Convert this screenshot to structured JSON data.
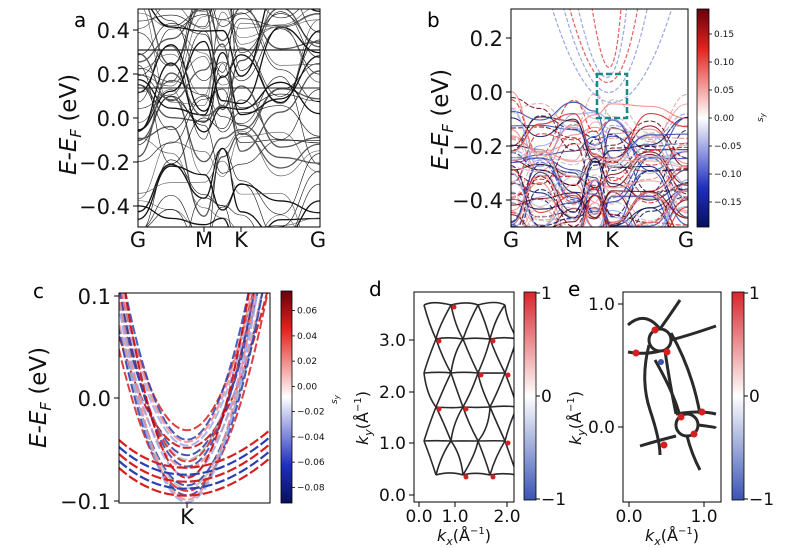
{
  "colors": {
    "red": "#d62020",
    "blue": "#2a3fb0",
    "darkred": "#67000d",
    "darkblue": "#08105a",
    "box": "#1a8a86",
    "lines": "#222222"
  },
  "panels": {
    "a": {
      "label": "a",
      "ylabel": "E-E",
      "ylabel_sub": "F",
      "ylabel_unit": " (eV)",
      "yticks": [
        "0.4",
        "0.2",
        "0.0",
        "−0.2",
        "−0.4"
      ],
      "xticks": [
        "G",
        "M",
        "K",
        "G"
      ]
    },
    "b": {
      "label": "b",
      "ylabel": "E-E",
      "ylabel_sub": "F",
      "ylabel_unit": " (eV)",
      "yticks": [
        "0.2",
        "0.0",
        "−0.2",
        "−0.4"
      ],
      "xticks": [
        "G",
        "M",
        "K",
        "G"
      ],
      "colorbar": {
        "label": "s",
        "label_sub": "y",
        "ticks": [
          "0.15",
          "0.10",
          "0.05",
          "0.00",
          "−0.05",
          "−0.10",
          "−0.15"
        ]
      }
    },
    "c": {
      "label": "c",
      "ylabel": "E-E",
      "ylabel_sub": "F",
      "ylabel_unit": " (eV)",
      "yticks": [
        "0.1",
        "0.0",
        "−0.1"
      ],
      "xticks": [
        "K"
      ],
      "colorbar": {
        "label": "s",
        "label_sub": "y",
        "ticks": [
          "0.06",
          "0.04",
          "0.02",
          "0.00",
          "−0.02",
          "−0.04",
          "−0.06",
          "−0.08"
        ]
      }
    },
    "d": {
      "label": "d",
      "ylabel": "k",
      "ylabel_sub": "y",
      "ylabel_unit": "(Å",
      "ylabel_sup": "−1",
      "ylabel_close": ")",
      "xlabel": "k",
      "xlabel_sub": "x",
      "xlabel_unit": "(Å",
      "xlabel_sup": "−1",
      "xlabel_close": ")",
      "yticks": [
        "3.0",
        "2.0",
        "1.0",
        "0.0"
      ],
      "xticks": [
        "0.0",
        "1.0",
        "2.0"
      ],
      "colorbar": {
        "ticks": [
          "1",
          "0",
          "−1"
        ]
      }
    },
    "e": {
      "label": "e",
      "ylabel": "k",
      "ylabel_sub": "y",
      "ylabel_unit": "(Å",
      "ylabel_sup": "−1",
      "ylabel_close": ")",
      "xlabel": "k",
      "xlabel_sub": "x",
      "xlabel_unit": "(Å",
      "xlabel_sup": "−1",
      "xlabel_close": ")",
      "yticks": [
        "1.0",
        "0.0"
      ],
      "xticks": [
        "0.0",
        "1.0"
      ],
      "colorbar": {
        "ticks": [
          "1",
          "0",
          "−1"
        ]
      }
    }
  }
}
